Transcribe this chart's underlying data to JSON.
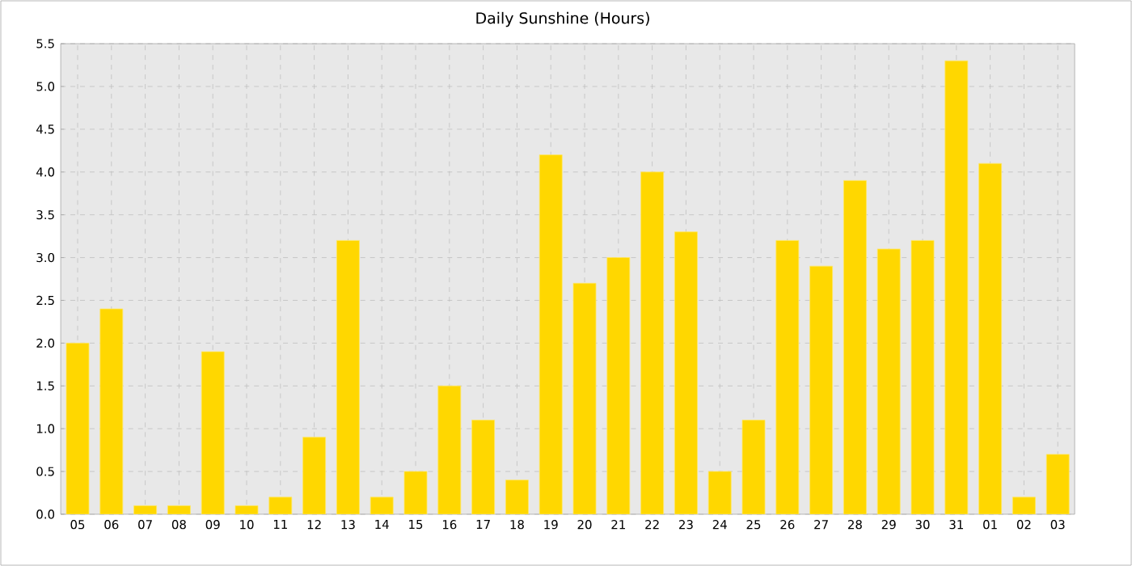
{
  "chart_data": {
    "type": "bar",
    "title": "Daily Sunshine (Hours)",
    "categories": [
      "05",
      "06",
      "07",
      "08",
      "09",
      "10",
      "11",
      "12",
      "13",
      "14",
      "15",
      "16",
      "17",
      "18",
      "19",
      "20",
      "21",
      "22",
      "23",
      "24",
      "25",
      "26",
      "27",
      "28",
      "29",
      "30",
      "31",
      "01",
      "02",
      "03"
    ],
    "values": [
      2.0,
      2.4,
      0.1,
      0.1,
      1.9,
      0.1,
      0.2,
      0.9,
      3.2,
      0.2,
      0.5,
      1.5,
      1.1,
      0.4,
      4.2,
      2.7,
      3.0,
      4.0,
      3.3,
      0.5,
      1.1,
      3.2,
      2.9,
      3.9,
      3.1,
      3.2,
      5.3,
      4.1,
      0.2,
      0.7
    ],
    "color": "#ffd700",
    "ylim": [
      0,
      5.5
    ],
    "yticks": [
      {
        "value": 0,
        "label": "0.0"
      },
      {
        "value": 0.5,
        "label": "0.5"
      },
      {
        "value": 1,
        "label": "1.0"
      },
      {
        "value": 1.5,
        "label": "1.5"
      },
      {
        "value": 2,
        "label": "2.0"
      },
      {
        "value": 2.5,
        "label": "2.5"
      },
      {
        "value": 3,
        "label": "3.0"
      },
      {
        "value": 3.5,
        "label": "3.5"
      },
      {
        "value": 4,
        "label": "4.0"
      },
      {
        "value": 4.5,
        "label": "4.5"
      },
      {
        "value": 5,
        "label": "5.0"
      },
      {
        "value": 5.5,
        "label": "5.5"
      }
    ],
    "grid": true
  }
}
